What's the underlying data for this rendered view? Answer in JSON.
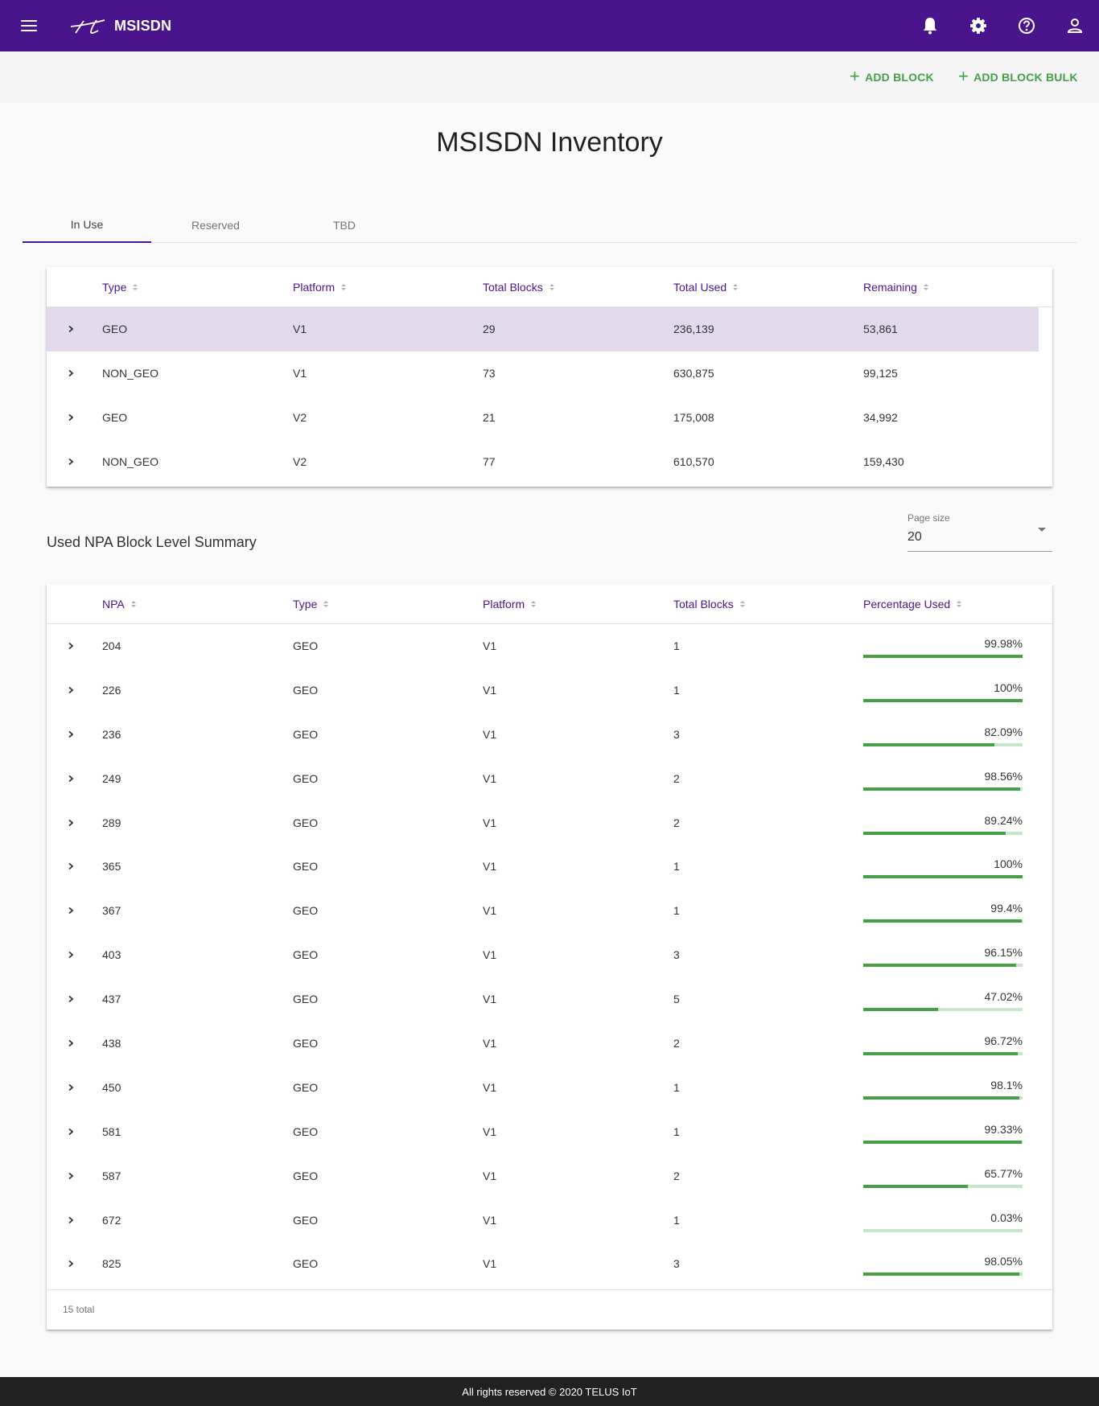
{
  "app": {
    "title": "MSISDN"
  },
  "toolbar": {
    "add_block": "ADD BLOCK",
    "add_block_bulk": "ADD BLOCK BULK"
  },
  "page": {
    "title": "MSISDN Inventory"
  },
  "tabs": [
    {
      "label": "In Use",
      "active": true
    },
    {
      "label": "Reserved",
      "active": false
    },
    {
      "label": "TBD",
      "active": false
    }
  ],
  "inventory_table": {
    "headers": [
      "Type",
      "Platform",
      "Total Blocks",
      "Total Used",
      "Remaining"
    ],
    "rows": [
      {
        "type": "GEO",
        "platform": "V1",
        "total_blocks": "29",
        "total_used": "236,139",
        "remaining": "53,861"
      },
      {
        "type": "NON_GEO",
        "platform": "V1",
        "total_blocks": "73",
        "total_used": "630,875",
        "remaining": "99,125"
      },
      {
        "type": "GEO",
        "platform": "V2",
        "total_blocks": "21",
        "total_used": "175,008",
        "remaining": "34,992"
      },
      {
        "type": "NON_GEO",
        "platform": "V2",
        "total_blocks": "77",
        "total_used": "610,570",
        "remaining": "159,430"
      }
    ]
  },
  "summary": {
    "title": "Used NPA Block Level Summary",
    "page_size_label": "Page size",
    "page_size_value": "20",
    "headers": [
      "NPA",
      "Type",
      "Platform",
      "Total Blocks",
      "Percentage Used"
    ],
    "rows": [
      {
        "npa": "204",
        "type": "GEO",
        "platform": "V1",
        "total_blocks": "1",
        "percentage": "99.98%",
        "fraction": 0.9998
      },
      {
        "npa": "226",
        "type": "GEO",
        "platform": "V1",
        "total_blocks": "1",
        "percentage": "100%",
        "fraction": 1.0
      },
      {
        "npa": "236",
        "type": "GEO",
        "platform": "V1",
        "total_blocks": "3",
        "percentage": "82.09%",
        "fraction": 0.8209
      },
      {
        "npa": "249",
        "type": "GEO",
        "platform": "V1",
        "total_blocks": "2",
        "percentage": "98.56%",
        "fraction": 0.9856
      },
      {
        "npa": "289",
        "type": "GEO",
        "platform": "V1",
        "total_blocks": "2",
        "percentage": "89.24%",
        "fraction": 0.8924
      },
      {
        "npa": "365",
        "type": "GEO",
        "platform": "V1",
        "total_blocks": "1",
        "percentage": "100%",
        "fraction": 1.0
      },
      {
        "npa": "367",
        "type": "GEO",
        "platform": "V1",
        "total_blocks": "1",
        "percentage": "99.4%",
        "fraction": 0.994
      },
      {
        "npa": "403",
        "type": "GEO",
        "platform": "V1",
        "total_blocks": "3",
        "percentage": "96.15%",
        "fraction": 0.9615
      },
      {
        "npa": "437",
        "type": "GEO",
        "platform": "V1",
        "total_blocks": "5",
        "percentage": "47.02%",
        "fraction": 0.4702
      },
      {
        "npa": "438",
        "type": "GEO",
        "platform": "V1",
        "total_blocks": "2",
        "percentage": "96.72%",
        "fraction": 0.9672
      },
      {
        "npa": "450",
        "type": "GEO",
        "platform": "V1",
        "total_blocks": "1",
        "percentage": "98.1%",
        "fraction": 0.981
      },
      {
        "npa": "581",
        "type": "GEO",
        "platform": "V1",
        "total_blocks": "1",
        "percentage": "99.33%",
        "fraction": 0.9933
      },
      {
        "npa": "587",
        "type": "GEO",
        "platform": "V1",
        "total_blocks": "2",
        "percentage": "65.77%",
        "fraction": 0.6577
      },
      {
        "npa": "672",
        "type": "GEO",
        "platform": "V1",
        "total_blocks": "1",
        "percentage": "0.03%",
        "fraction": 0.0003
      },
      {
        "npa": "825",
        "type": "GEO",
        "platform": "V1",
        "total_blocks": "3",
        "percentage": "98.05%",
        "fraction": 0.9805
      }
    ],
    "total_text": "15 total"
  },
  "footer": {
    "text": "All rights reserved © 2020 TELUS IoT"
  },
  "icons": {
    "menu": "hamburger-menu-icon",
    "notifications": "bell-icon",
    "settings": "gear-icon",
    "help": "help-circle-icon",
    "account": "person-icon",
    "expand": "chevron-right-icon",
    "add": "plus-icon",
    "sort": "sort-arrows-icon"
  },
  "colors": {
    "brand": "#4a148c",
    "accent_green": "#43a047",
    "bar_track": "#c8e6c9",
    "highlight_row": "#e2d9ec",
    "footer_bg": "#212121"
  }
}
